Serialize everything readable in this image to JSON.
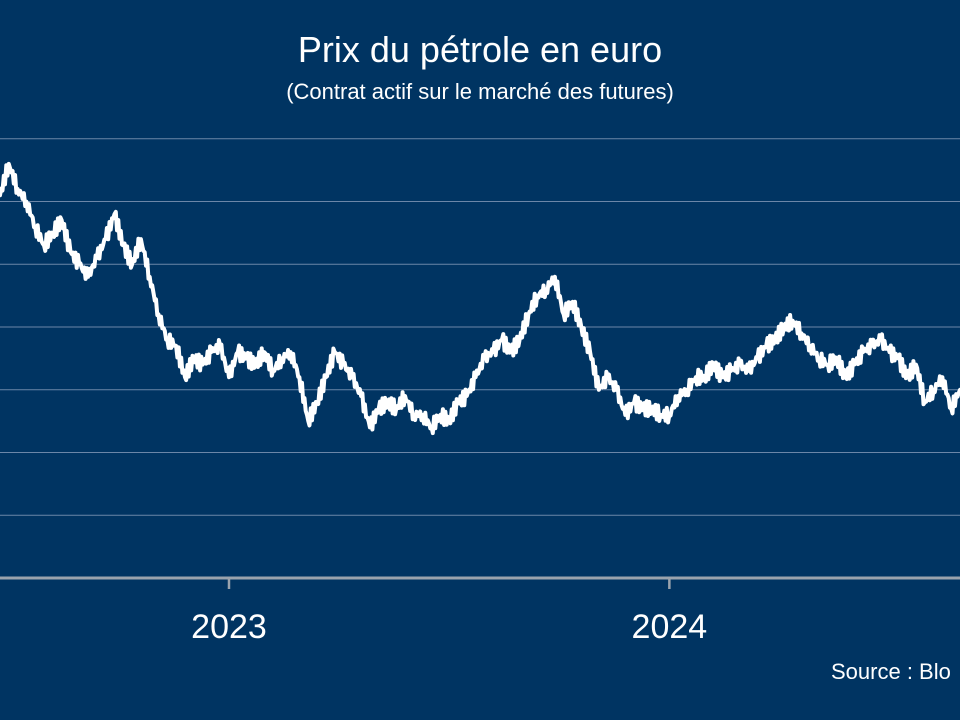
{
  "title": "Prix du pétrole en euro",
  "subtitle": "(Contrat actif sur le marché des futures)",
  "source": "Source : Blo",
  "colors": {
    "background": "#003462",
    "line": "#ffffff",
    "grid": "#6b86a8",
    "axis": "#9aa3ad"
  },
  "chart_data": {
    "type": "line",
    "title": "Prix du pétrole en euro",
    "subtitle": "(Contrat actif sur le marché des futures)",
    "xlabel": "",
    "ylabel": "",
    "x_tick_labels": [
      "2023",
      "2024"
    ],
    "y_tick_labels": [],
    "grid": "horizontal",
    "ylim": [
      0,
      8
    ],
    "xlim": [
      2022.48,
      2024.66
    ],
    "series": [
      {
        "x": [
          2022.48,
          2022.5,
          2022.52,
          2022.54,
          2022.56,
          2022.58,
          2022.6,
          2022.62,
          2022.64,
          2022.66,
          2022.68,
          2022.7,
          2022.72,
          2022.74,
          2022.76,
          2022.78,
          2022.8,
          2022.82,
          2022.84,
          2022.86,
          2022.88,
          2022.9,
          2022.92,
          2022.94,
          2022.96,
          2022.98,
          2023.0,
          2023.02,
          2023.04,
          2023.06,
          2023.08,
          2023.1,
          2023.12,
          2023.14,
          2023.16,
          2023.18,
          2023.2,
          2023.22,
          2023.24,
          2023.26,
          2023.28,
          2023.3,
          2023.32,
          2023.34,
          2023.36,
          2023.38,
          2023.4,
          2023.42,
          2023.44,
          2023.46,
          2023.48,
          2023.5,
          2023.52,
          2023.54,
          2023.56,
          2023.58,
          2023.6,
          2023.62,
          2023.64,
          2023.66,
          2023.68,
          2023.7,
          2023.72,
          2023.74,
          2023.76,
          2023.78,
          2023.8,
          2023.82,
          2023.84,
          2023.86,
          2023.88,
          2023.9,
          2023.92,
          2023.94,
          2023.96,
          2023.98,
          2024.0,
          2024.02,
          2024.04,
          2024.06,
          2024.08,
          2024.1,
          2024.12,
          2024.14,
          2024.16,
          2024.18,
          2024.2,
          2024.22,
          2024.24,
          2024.26,
          2024.28,
          2024.3,
          2024.32,
          2024.34,
          2024.36,
          2024.38,
          2024.4,
          2024.42,
          2024.44,
          2024.46,
          2024.48,
          2024.5,
          2024.52,
          2024.54,
          2024.56,
          2024.58,
          2024.6,
          2024.62,
          2024.64,
          2024.66
        ],
        "values": [
          6.1,
          6.6,
          6.2,
          6.0,
          5.6,
          5.3,
          5.5,
          5.7,
          5.2,
          5.0,
          4.8,
          5.1,
          5.4,
          5.8,
          5.3,
          5.0,
          5.4,
          4.8,
          4.2,
          3.8,
          3.7,
          3.2,
          3.5,
          3.4,
          3.6,
          3.7,
          3.2,
          3.6,
          3.5,
          3.4,
          3.6,
          3.3,
          3.5,
          3.6,
          3.2,
          2.5,
          2.8,
          3.2,
          3.6,
          3.4,
          3.2,
          2.9,
          2.4,
          2.7,
          2.8,
          2.7,
          2.9,
          2.6,
          2.6,
          2.4,
          2.6,
          2.5,
          2.8,
          2.9,
          3.2,
          3.5,
          3.6,
          3.8,
          3.6,
          3.8,
          4.2,
          4.5,
          4.6,
          4.8,
          4.2,
          4.4,
          4.0,
          3.6,
          3.0,
          3.2,
          3.0,
          2.6,
          2.8,
          2.7,
          2.7,
          2.6,
          2.6,
          2.9,
          3.0,
          3.2,
          3.2,
          3.4,
          3.2,
          3.3,
          3.4,
          3.3,
          3.5,
          3.7,
          3.8,
          4.0,
          4.1,
          3.9,
          3.7,
          3.5,
          3.4,
          3.5,
          3.2,
          3.4,
          3.6,
          3.7,
          3.8,
          3.6,
          3.5,
          3.2,
          3.4,
          2.8,
          3.0,
          3.2,
          2.7,
          3.0
        ]
      }
    ]
  }
}
